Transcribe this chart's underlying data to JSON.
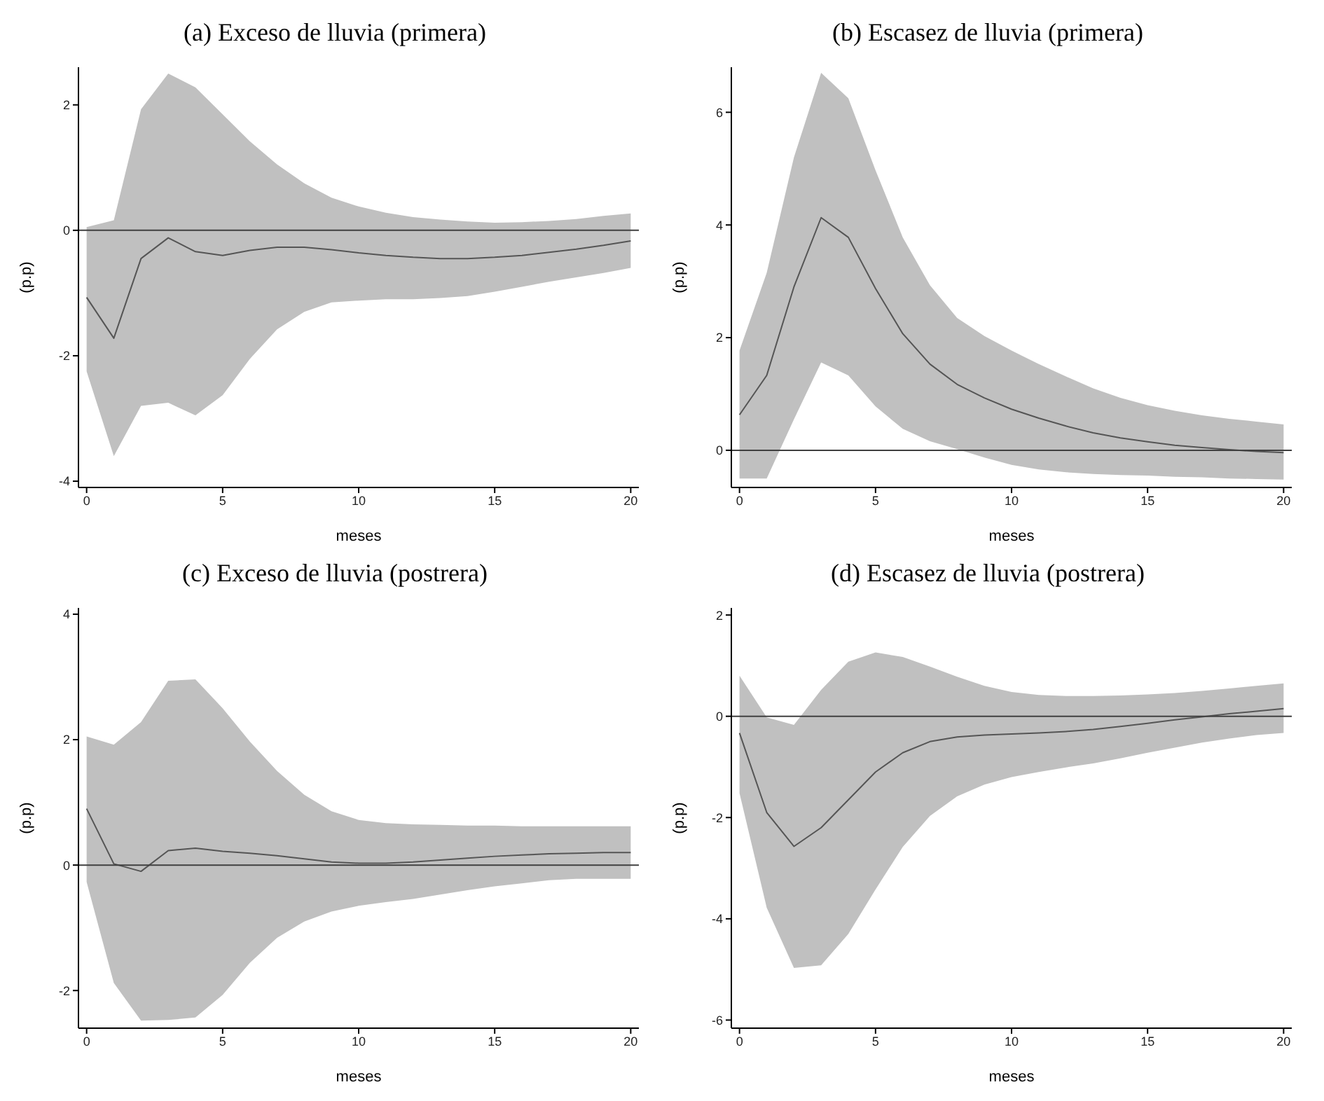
{
  "chart_data": [
    {
      "type": "line",
      "title": "(a) Exceso de lluvia (primera)",
      "xlabel": "meses",
      "ylabel": "(p.p)",
      "x": [
        0,
        1,
        2,
        3,
        4,
        5,
        6,
        7,
        8,
        9,
        10,
        11,
        12,
        13,
        14,
        15,
        16,
        17,
        18,
        19,
        20
      ],
      "xlim": [
        -0.3,
        20.3
      ],
      "xticks": [
        0,
        5,
        10,
        15,
        20
      ],
      "ylim": [
        -4.1,
        2.6
      ],
      "yticks": [
        -4,
        -2,
        0,
        2
      ],
      "grid": false,
      "legend": false,
      "marker": "none",
      "line_style": "solid",
      "ref_lines": [
        {
          "axis": "y",
          "value": 0,
          "color": "#404040"
        }
      ],
      "series": [
        {
          "color": "#555555",
          "values": [
            -1.07,
            -1.72,
            -0.45,
            -0.12,
            -0.34,
            -0.4,
            -0.32,
            -0.27,
            -0.27,
            -0.31,
            -0.36,
            -0.4,
            -0.43,
            -0.45,
            -0.45,
            -0.43,
            -0.4,
            -0.35,
            -0.3,
            -0.24,
            -0.17
          ],
          "upper": [
            0.05,
            0.16,
            1.93,
            2.5,
            2.28,
            1.85,
            1.42,
            1.05,
            0.75,
            0.52,
            0.38,
            0.28,
            0.21,
            0.17,
            0.14,
            0.12,
            0.13,
            0.15,
            0.18,
            0.23,
            0.27
          ],
          "lower": [
            -2.25,
            -3.6,
            -2.8,
            -2.75,
            -2.95,
            -2.63,
            -2.05,
            -1.58,
            -1.3,
            -1.15,
            -1.12,
            -1.1,
            -1.1,
            -1.08,
            -1.05,
            -0.98,
            -0.9,
            -0.82,
            -0.75,
            -0.68,
            -0.6
          ]
        }
      ]
    },
    {
      "type": "line",
      "title": "(b) Escasez de lluvia (primera)",
      "xlabel": "meses",
      "ylabel": "(p.p)",
      "x": [
        0,
        1,
        2,
        3,
        4,
        5,
        6,
        7,
        8,
        9,
        10,
        11,
        12,
        13,
        14,
        15,
        16,
        17,
        18,
        19,
        20
      ],
      "xlim": [
        -0.3,
        20.3
      ],
      "xticks": [
        0,
        5,
        10,
        15,
        20
      ],
      "ylim": [
        -0.66,
        6.8
      ],
      "yticks": [
        0,
        2,
        4,
        6
      ],
      "grid": false,
      "legend": false,
      "marker": "none",
      "line_style": "solid",
      "ref_lines": [
        {
          "axis": "y",
          "value": 0,
          "color": "#404040"
        }
      ],
      "series": [
        {
          "color": "#555555",
          "values": [
            0.63,
            1.33,
            2.9,
            4.13,
            3.78,
            2.87,
            2.07,
            1.53,
            1.17,
            0.93,
            0.73,
            0.57,
            0.43,
            0.31,
            0.22,
            0.15,
            0.09,
            0.05,
            0.01,
            -0.02,
            -0.04
          ],
          "upper": [
            1.77,
            3.15,
            5.2,
            6.7,
            6.25,
            4.97,
            3.78,
            2.93,
            2.35,
            2.03,
            1.77,
            1.53,
            1.31,
            1.1,
            0.93,
            0.8,
            0.7,
            0.62,
            0.56,
            0.51,
            0.46
          ],
          "lower": [
            -0.5,
            -0.5,
            0.55,
            1.56,
            1.33,
            0.78,
            0.38,
            0.16,
            0.02,
            -0.13,
            -0.26,
            -0.34,
            -0.39,
            -0.42,
            -0.44,
            -0.45,
            -0.47,
            -0.48,
            -0.5,
            -0.51,
            -0.52
          ]
        }
      ]
    },
    {
      "type": "line",
      "title": "(c) Exceso de lluvia (postrera)",
      "xlabel": "meses",
      "ylabel": "(p.p)",
      "x": [
        0,
        1,
        2,
        3,
        4,
        5,
        6,
        7,
        8,
        9,
        10,
        11,
        12,
        13,
        14,
        15,
        16,
        17,
        18,
        19,
        20
      ],
      "xlim": [
        -0.3,
        20.3
      ],
      "xticks": [
        0,
        5,
        10,
        15,
        20
      ],
      "ylim": [
        -2.6,
        4.1
      ],
      "yticks": [
        -2,
        0,
        2,
        4
      ],
      "grid": false,
      "legend": false,
      "marker": "none",
      "line_style": "solid",
      "ref_lines": [
        {
          "axis": "y",
          "value": 0,
          "color": "#404040"
        }
      ],
      "series": [
        {
          "color": "#555555",
          "values": [
            0.9,
            0.02,
            -0.1,
            0.23,
            0.27,
            0.22,
            0.19,
            0.15,
            0.1,
            0.05,
            0.03,
            0.03,
            0.05,
            0.08,
            0.11,
            0.14,
            0.16,
            0.18,
            0.19,
            0.2,
            0.2
          ],
          "upper": [
            2.05,
            1.92,
            2.28,
            2.94,
            2.96,
            2.5,
            1.97,
            1.5,
            1.12,
            0.86,
            0.72,
            0.67,
            0.65,
            0.64,
            0.63,
            0.63,
            0.62,
            0.62,
            0.62,
            0.62,
            0.62
          ],
          "lower": [
            -0.27,
            -1.88,
            -2.48,
            -2.47,
            -2.43,
            -2.07,
            -1.56,
            -1.16,
            -0.9,
            -0.74,
            -0.65,
            -0.59,
            -0.54,
            -0.47,
            -0.4,
            -0.34,
            -0.29,
            -0.24,
            -0.22,
            -0.22,
            -0.22
          ]
        }
      ]
    },
    {
      "type": "line",
      "title": "(d) Escasez de lluvia (postrera)",
      "xlabel": "meses",
      "ylabel": "(p.p)",
      "x": [
        0,
        1,
        2,
        3,
        4,
        5,
        6,
        7,
        8,
        9,
        10,
        11,
        12,
        13,
        14,
        15,
        16,
        17,
        18,
        19,
        20
      ],
      "xlim": [
        -0.3,
        20.3
      ],
      "xticks": [
        0,
        5,
        10,
        15,
        20
      ],
      "ylim": [
        -6.16,
        2.14
      ],
      "yticks": [
        -6,
        -4,
        -2,
        0,
        2
      ],
      "grid": false,
      "legend": false,
      "marker": "none",
      "line_style": "solid",
      "ref_lines": [
        {
          "axis": "y",
          "value": 0,
          "color": "#404040"
        }
      ],
      "series": [
        {
          "color": "#555555",
          "values": [
            -0.33,
            -1.9,
            -2.57,
            -2.2,
            -1.65,
            -1.1,
            -0.72,
            -0.5,
            -0.41,
            -0.37,
            -0.35,
            -0.33,
            -0.3,
            -0.26,
            -0.2,
            -0.14,
            -0.07,
            -0.01,
            0.05,
            0.1,
            0.15
          ],
          "upper": [
            0.8,
            -0.02,
            -0.17,
            0.52,
            1.08,
            1.26,
            1.17,
            0.98,
            0.78,
            0.6,
            0.48,
            0.42,
            0.4,
            0.4,
            0.41,
            0.43,
            0.46,
            0.5,
            0.55,
            0.6,
            0.65
          ],
          "lower": [
            -1.52,
            -3.78,
            -4.97,
            -4.92,
            -4.3,
            -3.42,
            -2.58,
            -1.97,
            -1.58,
            -1.35,
            -1.2,
            -1.1,
            -1.01,
            -0.93,
            -0.83,
            -0.72,
            -0.62,
            -0.52,
            -0.44,
            -0.37,
            -0.33
          ]
        }
      ]
    }
  ]
}
